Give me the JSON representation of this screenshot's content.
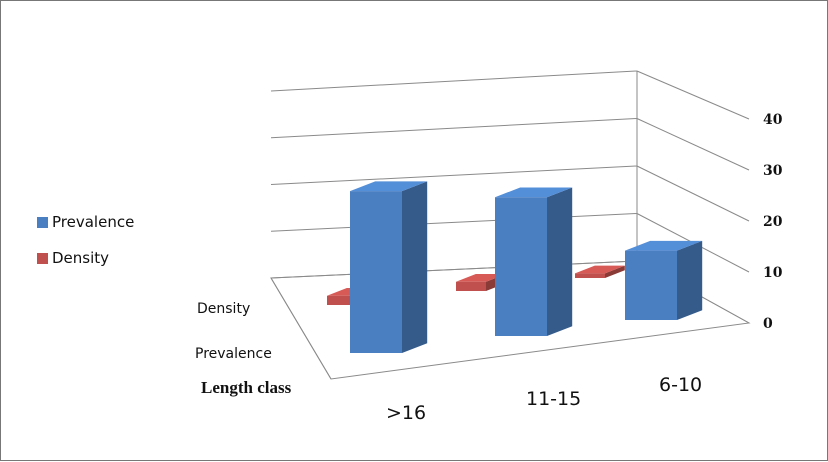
{
  "chart_data": {
    "type": "bar",
    "categories": [
      ">16",
      "11-15",
      "6-10"
    ],
    "series": [
      {
        "name": "Prevalence",
        "values": [
          35,
          30,
          15
        ],
        "color": "#4a7fc1"
      },
      {
        "name": "Density",
        "values": [
          2,
          2,
          1
        ],
        "color": "#c0504d"
      }
    ],
    "y_ticks": [
      "0",
      "10",
      "20",
      "30",
      "40"
    ],
    "ylim": [
      0,
      40
    ],
    "depth_labels": [
      "Density",
      "Prevalence"
    ],
    "xlabel": "Length class",
    "legend_position": "left",
    "grid": true
  }
}
